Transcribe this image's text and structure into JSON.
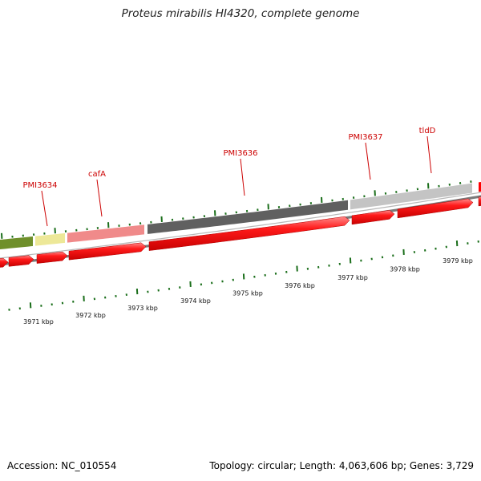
{
  "title": "Proteus mirabilis HI4320, complete genome",
  "footer": {
    "accession": "Accession: NC_010554",
    "summary": "Topology: circular; Length: 4,063,606 bp; Genes: 3,729"
  },
  "colors": {
    "gene_label": "#cc0000",
    "cds_arrow": "#ff0000",
    "ticks": "#1a6e1a",
    "backbone": "#8c8c8c"
  },
  "gene_labels": [
    "PMI3634",
    "cafA",
    "PMI3636",
    "PMI3637",
    "tldD"
  ],
  "kbp_labels": [
    "3971 kbp",
    "3972 kbp",
    "3973 kbp",
    "3974 kbp",
    "3975 kbp",
    "3976 kbp",
    "3977 kbp",
    "3978 kbp",
    "3979 kbp"
  ],
  "feature_colors": {
    "green": "#6f8f2a",
    "yellow": "#ede898",
    "pink": "#f08a8a",
    "darkgray": "#606060",
    "lightgray": "#c4c4c4"
  }
}
